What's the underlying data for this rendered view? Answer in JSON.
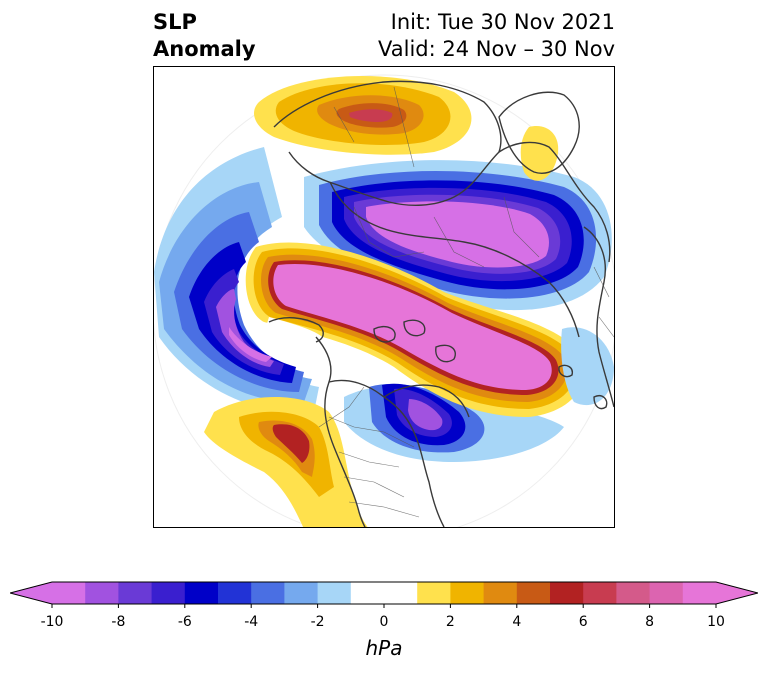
{
  "title": {
    "left_line1": "SLP",
    "left_line2": "Anomaly",
    "right_line1": "Init: Tue 30 Nov 2021",
    "right_line2": "Valid: 24 Nov – 30 Nov"
  },
  "colorbar": {
    "unit_label": "hPa",
    "ticks": [
      "-10",
      "-8",
      "-6",
      "-4",
      "-2",
      "0",
      "2",
      "4",
      "6",
      "8",
      "10"
    ],
    "levels": [
      -10,
      -9,
      -8,
      -7,
      -6,
      -5,
      -4,
      -3,
      -2,
      -1,
      0,
      1,
      2,
      3,
      4,
      5,
      6,
      7,
      8,
      9,
      10
    ],
    "colors": [
      "#d670e6",
      "#a152e0",
      "#6a3ad6",
      "#3a1fcf",
      "#0000c8",
      "#2233d6",
      "#4a6fe3",
      "#75a9ee",
      "#a7d6f7",
      "#ffffff",
      "#ffffff",
      "#ffe14d",
      "#f0b400",
      "#e08a10",
      "#c85a15",
      "#b22222",
      "#c83c50",
      "#d45a8a",
      "#dc64b0",
      "#e675d8"
    ],
    "under_color": "#d670e6",
    "over_color": "#e675d8"
  },
  "map": {
    "projection": "north-polar-stereographic",
    "field": "SLP anomaly"
  }
}
